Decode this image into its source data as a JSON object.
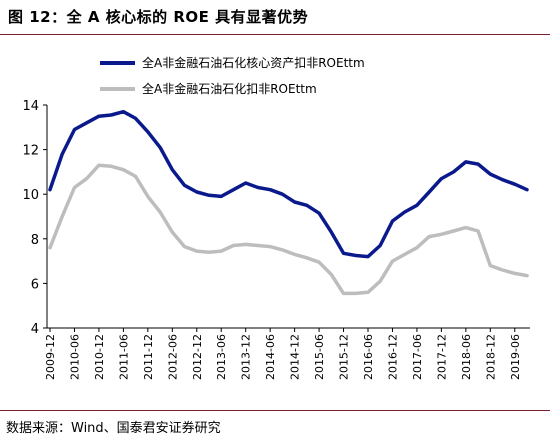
{
  "figure": {
    "title": "图 12：全 A 核心标的 ROE 具有显著优势",
    "source": "数据来源：Wind、国泰君安证券研究"
  },
  "chart_data": {
    "type": "line",
    "title": "",
    "xlabel": "",
    "ylabel": "",
    "ylim": [
      4,
      14
    ],
    "yticks": [
      4,
      6,
      8,
      10,
      12,
      14
    ],
    "grid": false,
    "legend_position": "top",
    "x_tick_labels": [
      "2009-12",
      "2010-06",
      "2010-12",
      "2011-06",
      "2011-12",
      "2012-06",
      "2012-12",
      "2013-06",
      "2013-12",
      "2014-06",
      "2014-12",
      "2015-06",
      "2015-12",
      "2016-06",
      "2016-12",
      "2017-06",
      "2017-12",
      "2018-06",
      "2018-12",
      "2019-06"
    ],
    "x": [
      "2009-12",
      "2010-03",
      "2010-06",
      "2010-09",
      "2010-12",
      "2011-03",
      "2011-06",
      "2011-09",
      "2011-12",
      "2012-03",
      "2012-06",
      "2012-09",
      "2012-12",
      "2013-03",
      "2013-06",
      "2013-09",
      "2013-12",
      "2014-03",
      "2014-06",
      "2014-09",
      "2014-12",
      "2015-03",
      "2015-06",
      "2015-09",
      "2015-12",
      "2016-03",
      "2016-06",
      "2016-09",
      "2016-12",
      "2017-03",
      "2017-06",
      "2017-09",
      "2017-12",
      "2018-03",
      "2018-06",
      "2018-09",
      "2018-12",
      "2019-03",
      "2019-06",
      "2019-09"
    ],
    "series": [
      {
        "name": "全A非金融石油石化核心资产扣非ROEttm",
        "color": "#0a1a8c",
        "values": [
          10.2,
          11.8,
          12.9,
          13.2,
          13.5,
          13.55,
          13.7,
          13.4,
          12.8,
          12.1,
          11.1,
          10.4,
          10.1,
          9.95,
          9.9,
          10.2,
          10.5,
          10.3,
          10.2,
          10.0,
          9.65,
          9.5,
          9.15,
          8.3,
          7.35,
          7.25,
          7.2,
          7.7,
          8.8,
          9.2,
          9.5,
          10.1,
          10.7,
          11.0,
          11.45,
          11.35,
          10.9,
          10.65,
          10.45,
          10.2
        ]
      },
      {
        "name": "全A非金融石油石化扣非ROEttm",
        "color": "#bdbdbd",
        "values": [
          7.6,
          9.0,
          10.3,
          10.7,
          11.3,
          11.25,
          11.1,
          10.8,
          9.9,
          9.2,
          8.3,
          7.65,
          7.45,
          7.4,
          7.45,
          7.7,
          7.75,
          7.7,
          7.65,
          7.5,
          7.3,
          7.15,
          6.95,
          6.4,
          5.55,
          5.55,
          5.6,
          6.1,
          7.0,
          7.3,
          7.6,
          8.1,
          8.2,
          8.35,
          8.5,
          8.35,
          6.8,
          6.6,
          6.45,
          6.35
        ]
      }
    ]
  }
}
